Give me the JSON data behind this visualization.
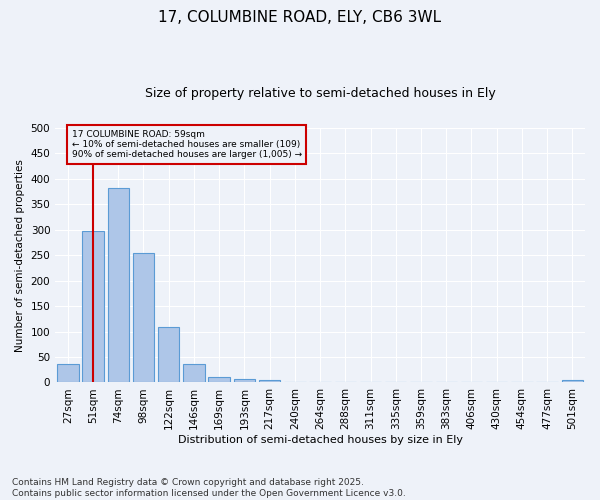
{
  "title1": "17, COLUMBINE ROAD, ELY, CB6 3WL",
  "title2": "Size of property relative to semi-detached houses in Ely",
  "xlabel": "Distribution of semi-detached houses by size in Ely",
  "ylabel": "Number of semi-detached properties",
  "bar_labels": [
    "27sqm",
    "51sqm",
    "74sqm",
    "98sqm",
    "122sqm",
    "146sqm",
    "169sqm",
    "193sqm",
    "217sqm",
    "240sqm",
    "264sqm",
    "288sqm",
    "311sqm",
    "335sqm",
    "359sqm",
    "383sqm",
    "406sqm",
    "430sqm",
    "454sqm",
    "477sqm",
    "501sqm"
  ],
  "bar_values": [
    37,
    297,
    383,
    254,
    109,
    37,
    11,
    7,
    5,
    0,
    0,
    0,
    0,
    0,
    0,
    0,
    0,
    0,
    0,
    0,
    5
  ],
  "bar_color": "#aec6e8",
  "bar_edge_color": "#5b9bd5",
  "vline_x": 1,
  "vline_color": "#cc0000",
  "annotation_text": "17 COLUMBINE ROAD: 59sqm\n← 10% of semi-detached houses are smaller (109)\n90% of semi-detached houses are larger (1,005) →",
  "annotation_box_color": "#cc0000",
  "ylim": [
    0,
    500
  ],
  "yticks": [
    0,
    50,
    100,
    150,
    200,
    250,
    300,
    350,
    400,
    450,
    500
  ],
  "footnote": "Contains HM Land Registry data © Crown copyright and database right 2025.\nContains public sector information licensed under the Open Government Licence v3.0.",
  "background_color": "#eef2f9",
  "grid_color": "#ffffff",
  "title1_fontsize": 11,
  "title2_fontsize": 9,
  "footnote_fontsize": 6.5
}
